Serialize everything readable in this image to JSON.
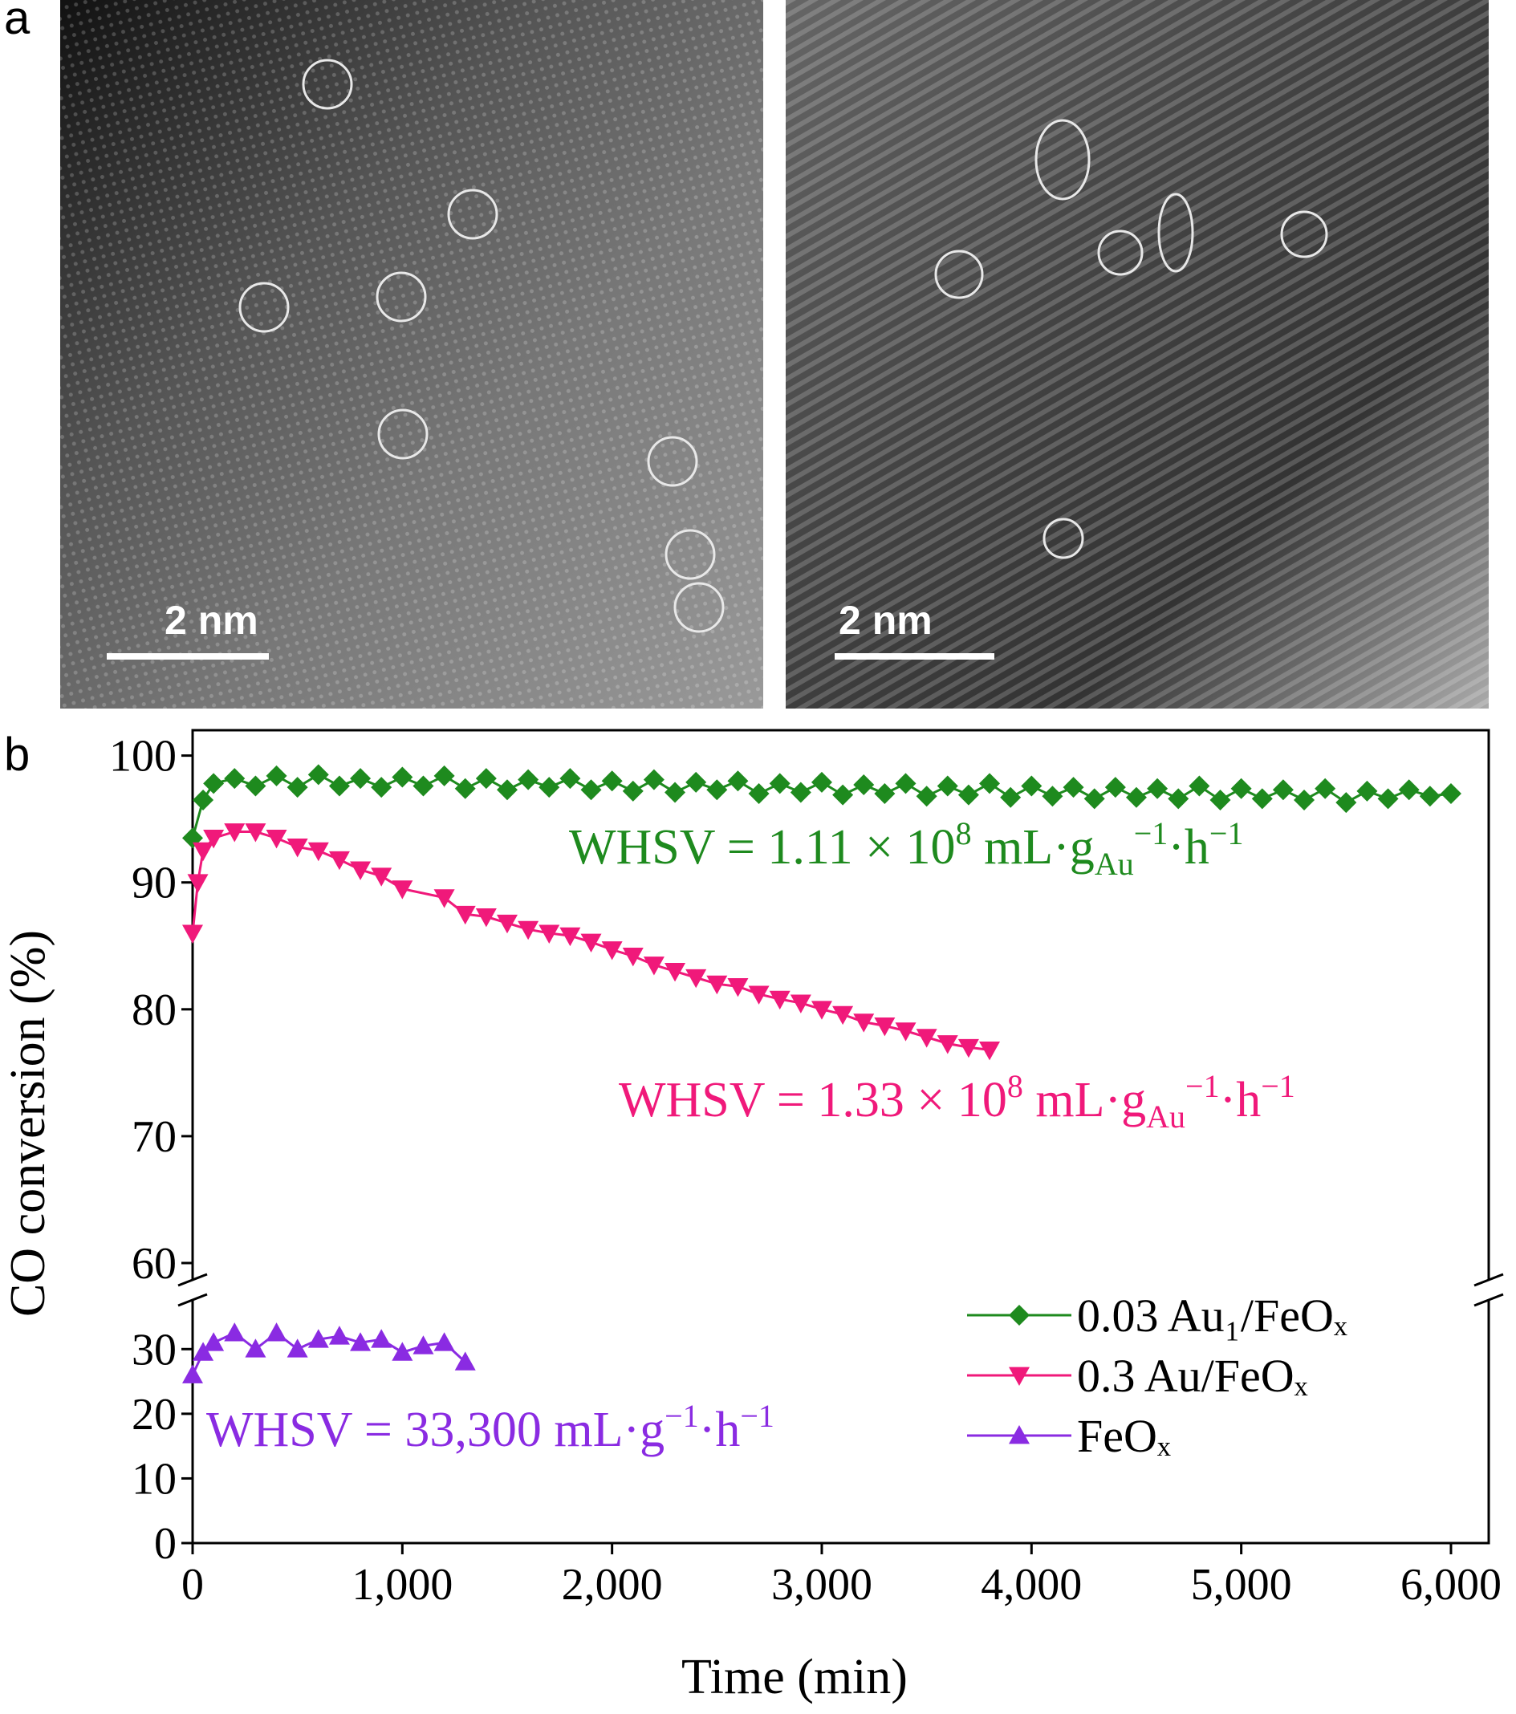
{
  "panel_labels": [
    "a",
    "b"
  ],
  "scale_bars": [
    "2 nm",
    "2 nm"
  ],
  "chart_data": {
    "type": "scatter",
    "xlabel": "Time (min)",
    "ylabel": "CO conversion (%)",
    "xlim": [
      0,
      6180
    ],
    "xticks": [
      0,
      {
        "value": 1000,
        "label": "1,000"
      },
      {
        "value": 2000,
        "label": "2,000"
      },
      {
        "value": 3000,
        "label": "3,000"
      },
      {
        "value": 4000,
        "label": "4,000"
      },
      {
        "value": 5000,
        "label": "5,000"
      },
      {
        "value": 6000,
        "label": "6,000"
      }
    ],
    "ylim_lower": [
      0,
      35
    ],
    "ylim_upper": [
      60,
      102
    ],
    "yticks": [
      0,
      10,
      20,
      30,
      60,
      70,
      80,
      90,
      100
    ],
    "series": [
      {
        "name": "0.03 Au₁/FeOₓ",
        "color": "#1e8a1e",
        "marker": "diamond",
        "x": [
          0,
          50,
          100,
          200,
          300,
          400,
          500,
          600,
          700,
          800,
          900,
          1000,
          1100,
          1200,
          1300,
          1400,
          1500,
          1600,
          1700,
          1800,
          1900,
          2000,
          2100,
          2200,
          2300,
          2400,
          2500,
          2600,
          2700,
          2800,
          2900,
          3000,
          3100,
          3200,
          3300,
          3400,
          3500,
          3600,
          3700,
          3800,
          3900,
          4000,
          4100,
          4200,
          4300,
          4400,
          4500,
          4600,
          4700,
          4800,
          4900,
          5000,
          5100,
          5200,
          5300,
          5400,
          5500,
          5600,
          5700,
          5800,
          5900,
          6000
        ],
        "values": [
          93.5,
          96.5,
          97.8,
          98.2,
          97.6,
          98.4,
          97.5,
          98.5,
          97.6,
          98.2,
          97.5,
          98.3,
          97.6,
          98.4,
          97.4,
          98.2,
          97.3,
          98.1,
          97.5,
          98.2,
          97.3,
          98.0,
          97.2,
          98.1,
          97.1,
          97.9,
          97.3,
          98.0,
          97.0,
          97.8,
          97.1,
          97.9,
          96.9,
          97.7,
          97.0,
          97.8,
          96.8,
          97.6,
          96.9,
          97.8,
          96.7,
          97.6,
          96.8,
          97.5,
          96.6,
          97.5,
          96.7,
          97.4,
          96.6,
          97.6,
          96.5,
          97.4,
          96.6,
          97.3,
          96.5,
          97.4,
          96.3,
          97.2,
          96.6,
          97.3,
          96.8,
          97.0
        ]
      },
      {
        "name": "0.3 Au/FeOₓ",
        "color": "#f0197a",
        "marker": "triangle-down",
        "x": [
          0,
          25,
          50,
          100,
          200,
          300,
          400,
          500,
          600,
          700,
          800,
          900,
          1000,
          1200,
          1300,
          1400,
          1500,
          1600,
          1700,
          1800,
          1900,
          2000,
          2100,
          2200,
          2300,
          2400,
          2500,
          2600,
          2700,
          2800,
          2900,
          3000,
          3100,
          3200,
          3300,
          3400,
          3500,
          3600,
          3700,
          3800
        ],
        "values": [
          86,
          90,
          92.5,
          93.5,
          94,
          94,
          93.5,
          92.8,
          92.5,
          91.8,
          91,
          90.5,
          89.5,
          88.8,
          87.5,
          87.3,
          86.8,
          86.3,
          86,
          85.8,
          85.3,
          84.7,
          84.2,
          83.5,
          83,
          82.5,
          82,
          81.8,
          81.2,
          80.8,
          80.5,
          80,
          79.6,
          79,
          78.7,
          78.3,
          77.8,
          77.3,
          77,
          76.8
        ]
      },
      {
        "name": "FeOₓ",
        "color": "#8a2be2",
        "marker": "triangle-up",
        "x": [
          0,
          50,
          100,
          200,
          300,
          400,
          500,
          600,
          700,
          800,
          900,
          1000,
          1100,
          1200,
          1300
        ],
        "values": [
          26,
          29.5,
          31,
          32.5,
          30,
          32.5,
          30,
          31.5,
          32,
          31,
          31.5,
          29.5,
          30.5,
          31,
          28
        ]
      }
    ],
    "annotations": [
      {
        "parts": [
          "WHSV = 1.11 × 10",
          "8",
          " mL·g",
          "Au",
          "−1",
          "·h",
          "−1"
        ],
        "color": "#1e8a1e"
      },
      {
        "parts": [
          "WHSV = 1.33 × 10",
          "8",
          " mL·g",
          "Au",
          "−1",
          "·h",
          "−1"
        ],
        "color": "#f0197a"
      },
      {
        "parts": [
          "WHSV = 33,300 mL·g",
          "−1",
          "·h",
          "−1"
        ],
        "color": "#8a2be2"
      }
    ]
  }
}
